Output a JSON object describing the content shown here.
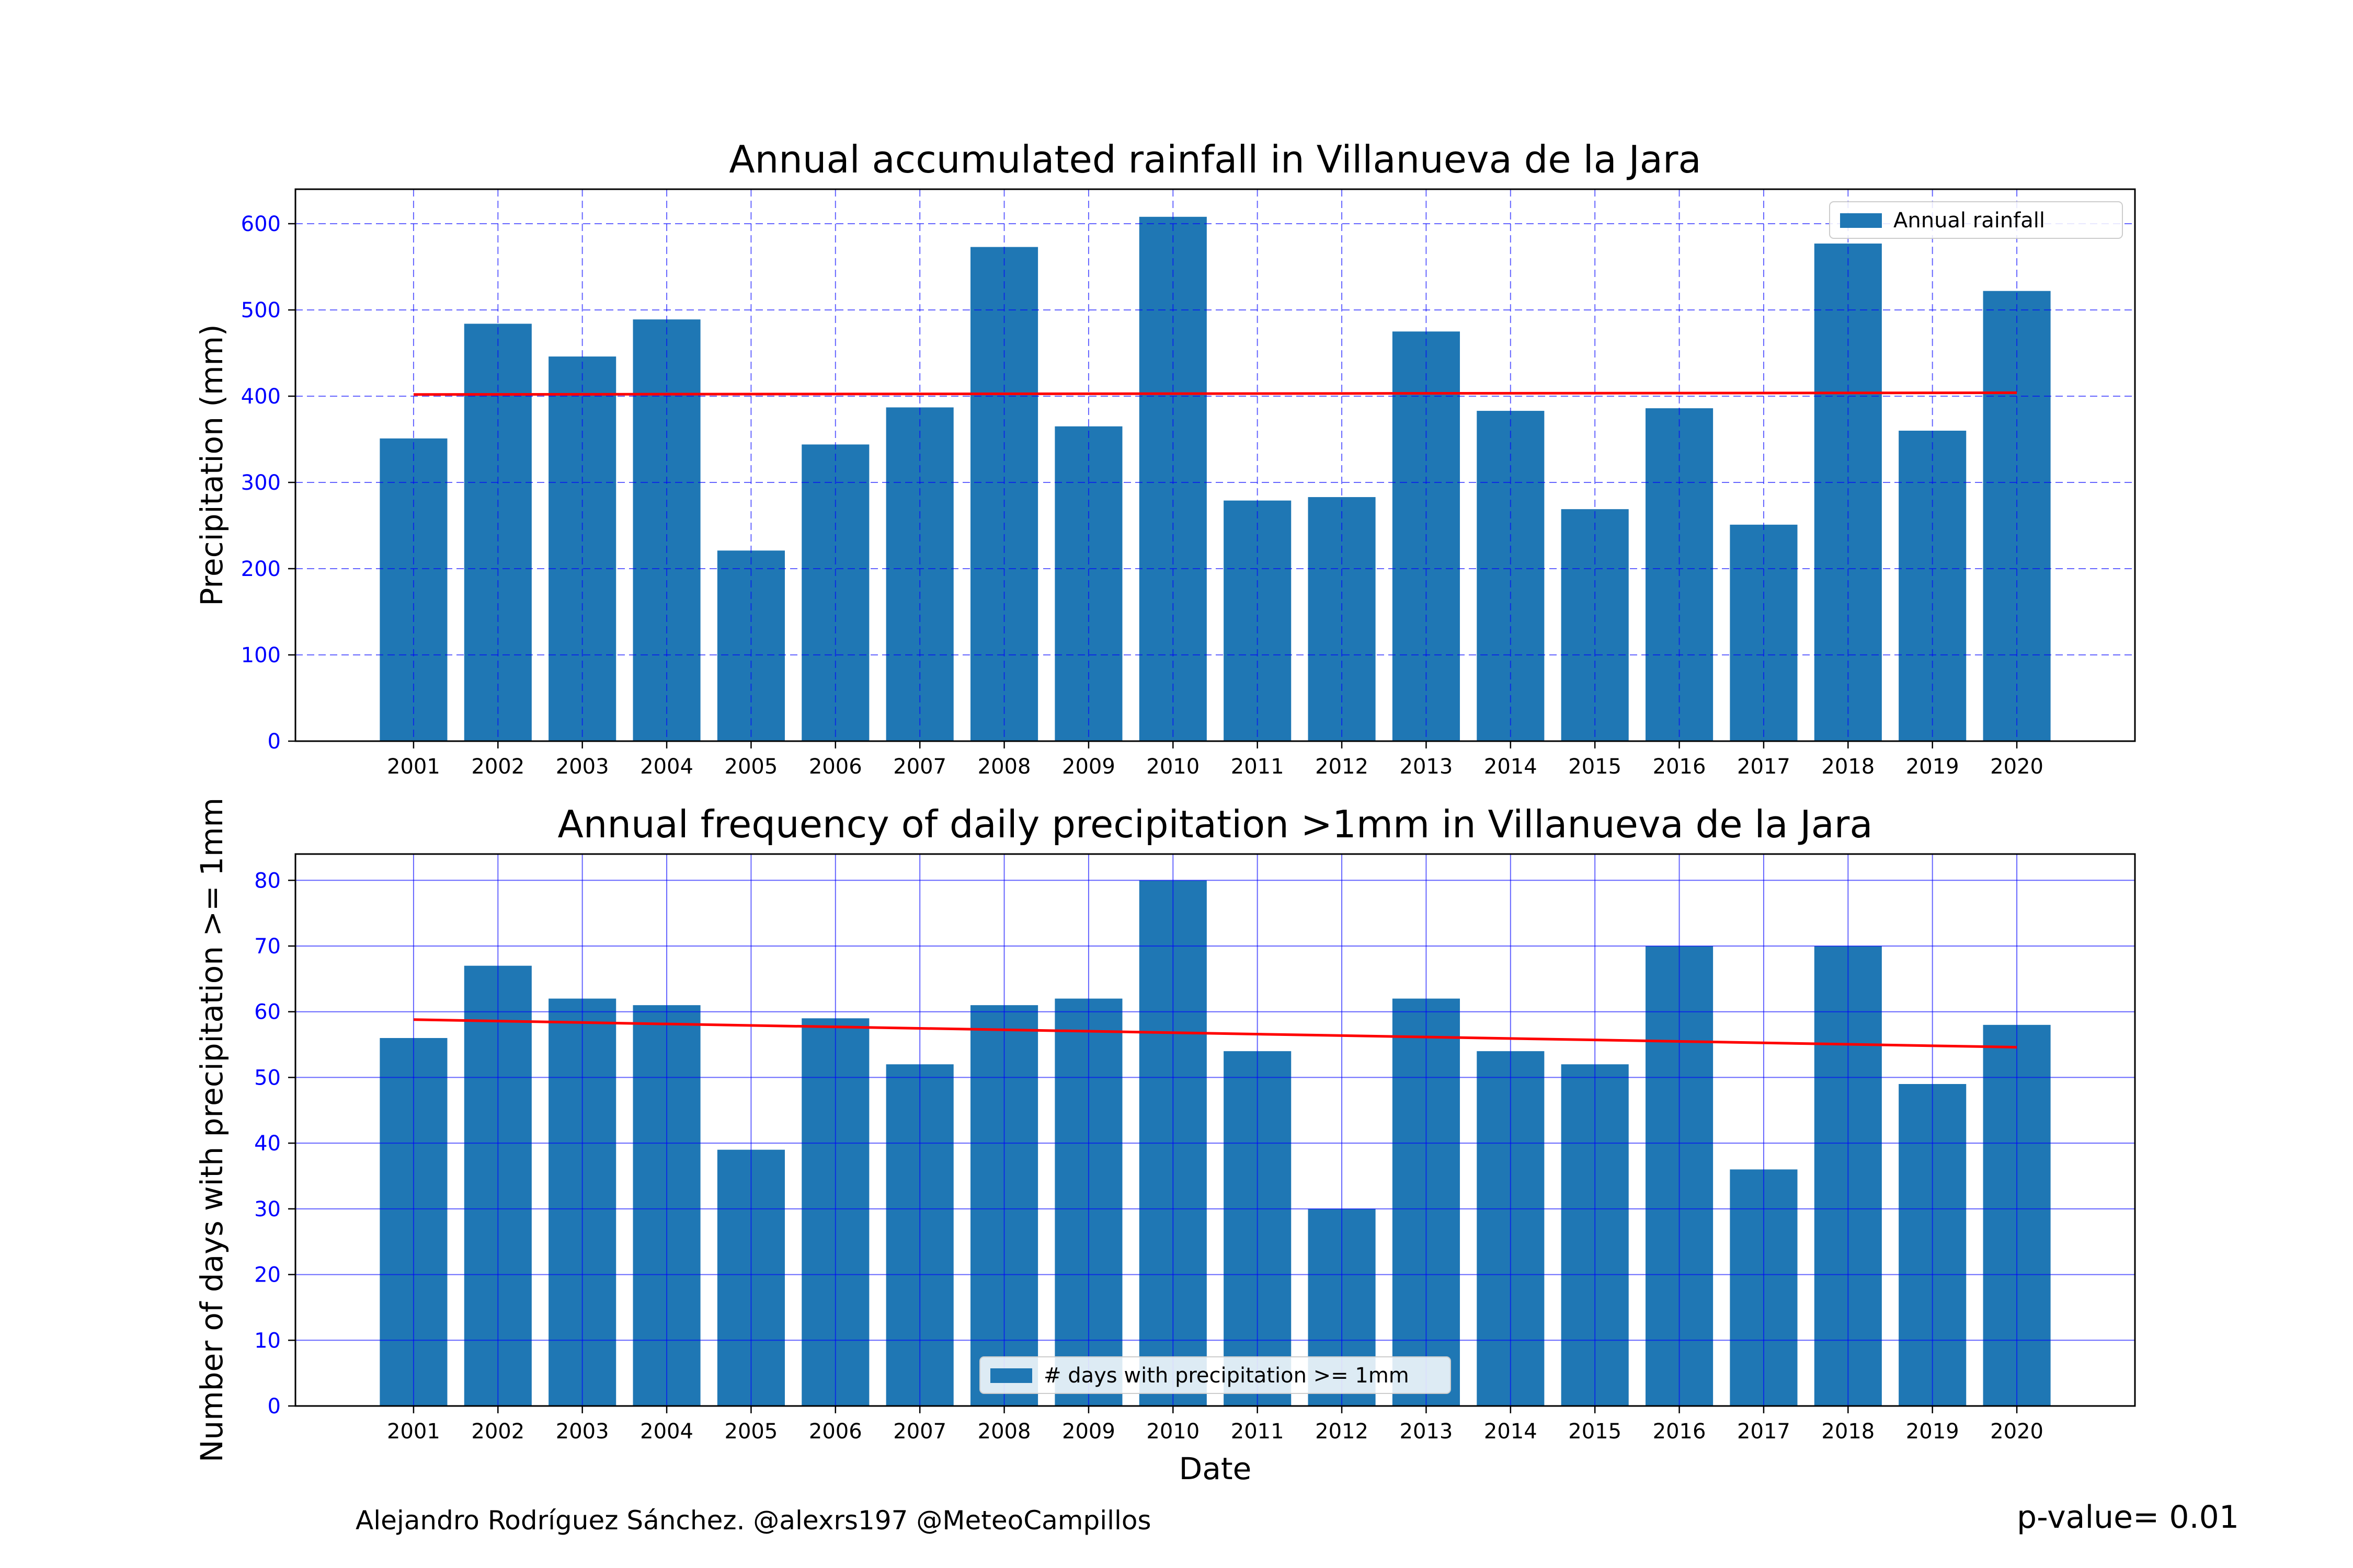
{
  "chart_data": [
    {
      "type": "bar",
      "title": "Annual accumulated rainfall in Villanueva de la Jara",
      "xlabel": "",
      "ylabel": "Precipitation (mm)",
      "categories": [
        "2001",
        "2002",
        "2003",
        "2004",
        "2005",
        "2006",
        "2007",
        "2008",
        "2009",
        "2010",
        "2011",
        "2012",
        "2013",
        "2014",
        "2015",
        "2016",
        "2017",
        "2018",
        "2019",
        "2020"
      ],
      "series": [
        {
          "name": "Annual rainfall",
          "values": [
            351,
            484,
            446,
            489,
            221,
            344,
            387,
            573,
            365,
            608,
            279,
            283,
            475,
            383,
            269,
            386,
            251,
            577,
            360,
            522
          ]
        }
      ],
      "trend": {
        "start": 402,
        "end": 404,
        "color": "#ff0000"
      },
      "ylim": [
        0,
        640
      ],
      "yticks": [
        0,
        100,
        200,
        300,
        400,
        500,
        600
      ],
      "grid": {
        "style": "dashed",
        "color": "#0000ff"
      },
      "legend_position": "top-right",
      "bar_color": "#1f77b4"
    },
    {
      "type": "bar",
      "title": "Annual frequency of daily precipitation >1mm in Villanueva de la Jara",
      "xlabel": "Date",
      "ylabel": "Number of days with precipitation >= 1mm",
      "categories": [
        "2001",
        "2002",
        "2003",
        "2004",
        "2005",
        "2006",
        "2007",
        "2008",
        "2009",
        "2010",
        "2011",
        "2012",
        "2013",
        "2014",
        "2015",
        "2016",
        "2017",
        "2018",
        "2019",
        "2020"
      ],
      "series": [
        {
          "name": "# days with precipitation >= 1mm",
          "values": [
            56,
            67,
            62,
            61,
            39,
            59,
            52,
            61,
            62,
            80,
            54,
            30,
            62,
            54,
            52,
            70,
            36,
            70,
            49,
            58
          ]
        }
      ],
      "trend": {
        "start": 58.8,
        "end": 54.6,
        "color": "#ff0000"
      },
      "ylim": [
        0,
        84
      ],
      "yticks": [
        0,
        10,
        20,
        30,
        40,
        50,
        60,
        70,
        80
      ],
      "grid": {
        "style": "solid",
        "color": "#0000ff"
      },
      "legend_position": "bottom-center",
      "bar_color": "#1f77b4"
    }
  ],
  "footer": {
    "credit": "Alejandro Rodríguez Sánchez. @alexrs197 @MeteoCampillos",
    "pvalue": "p-value= 0.01"
  }
}
